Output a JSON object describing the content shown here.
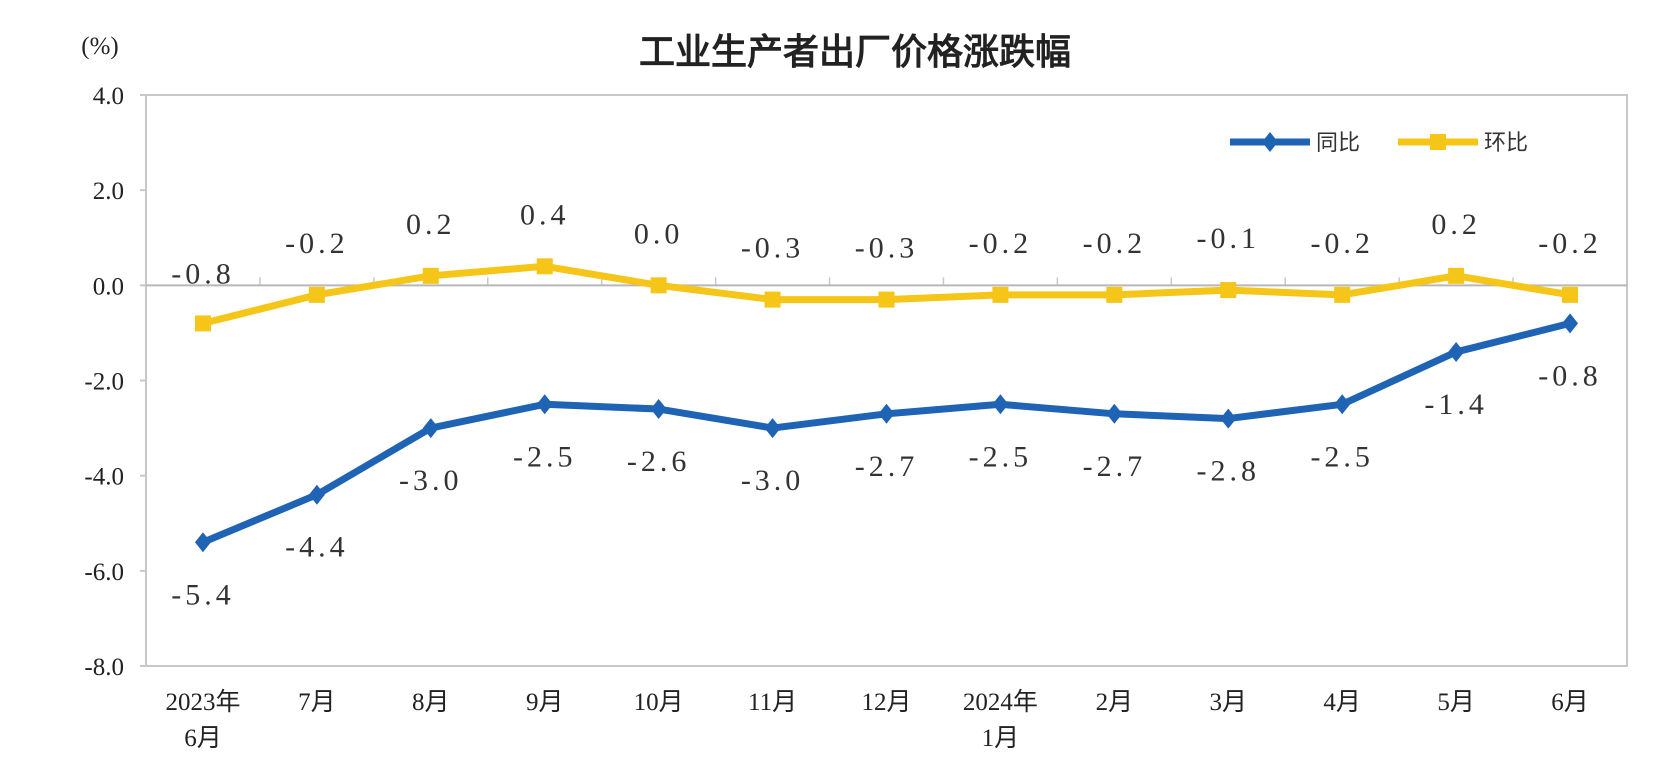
{
  "chart_data": {
    "type": "line",
    "title": "工业生产者出厂价格涨跌幅",
    "ylabel": "(%)",
    "ylim": [
      -8.0,
      4.0
    ],
    "yticks": [
      "4.0",
      "2.0",
      "0.0",
      "-2.0",
      "-4.0",
      "-6.0",
      "-8.0"
    ],
    "ytick_values": [
      4,
      2,
      0,
      -2,
      -4,
      -6,
      -8
    ],
    "categories": [
      [
        "2023年",
        "6月"
      ],
      [
        "7月"
      ],
      [
        "8月"
      ],
      [
        "9月"
      ],
      [
        "10月"
      ],
      [
        "11月"
      ],
      [
        "12月"
      ],
      [
        "2024年",
        "1月"
      ],
      [
        "2月"
      ],
      [
        "3月"
      ],
      [
        "4月"
      ],
      [
        "5月"
      ],
      [
        "6月"
      ]
    ],
    "grid": false,
    "legend_position": "top-right",
    "series": [
      {
        "name": "同比",
        "color": "#1f63b5",
        "marker": "diamond",
        "values": [
          -5.4,
          -4.4,
          -3.0,
          -2.5,
          -2.6,
          -3.0,
          -2.7,
          -2.5,
          -2.7,
          -2.8,
          -2.5,
          -1.4,
          -0.8
        ],
        "labels": [
          "-5.4",
          "-4.4",
          "-3.0",
          "-2.5",
          "-2.6",
          "-3.0",
          "-2.7",
          "-2.5",
          "-2.7",
          "-2.8",
          "-2.5",
          "-1.4",
          "-0.8"
        ]
      },
      {
        "name": "环比",
        "color": "#f5c518",
        "marker": "square",
        "values": [
          -0.8,
          -0.2,
          0.2,
          0.4,
          0.0,
          -0.3,
          -0.3,
          -0.2,
          -0.2,
          -0.1,
          -0.2,
          0.2,
          -0.2
        ],
        "labels": [
          "-0.8",
          "-0.2",
          "0.2",
          "0.4",
          "0.0",
          "-0.3",
          "-0.3",
          "-0.2",
          "-0.2",
          "-0.1",
          "-0.2",
          "0.2",
          "-0.2"
        ]
      }
    ]
  }
}
